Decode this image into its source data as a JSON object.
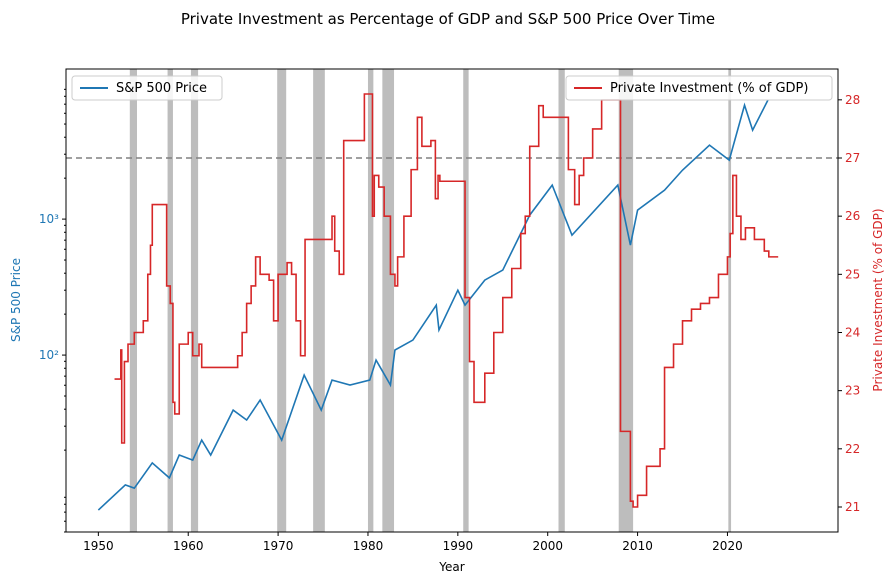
{
  "chart_data": {
    "type": "line",
    "title": "Private Investment as Percentage of GDP and S&P 500 Price Over Time",
    "xlabel": "Year",
    "ylabel": "S&P 500 Price",
    "y2label": "Private Investment (% of GDP)",
    "xlim": [
      1946.4,
      2032.3
    ],
    "xticks": [
      1950,
      1960,
      1970,
      1980,
      1990,
      2000,
      2010,
      2020
    ],
    "ylim": [
      5,
      12700
    ],
    "yscale": "log",
    "yticks": [
      {
        "value": 100,
        "label": "10²"
      },
      {
        "value": 1000,
        "label": "10³"
      }
    ],
    "y2lim": [
      20.57,
      28.53
    ],
    "y2ticks": [
      21,
      22,
      23,
      24,
      25,
      26,
      27,
      28
    ],
    "hline": {
      "value": 27,
      "axis": "y2",
      "color": "#808080",
      "style": "dashed"
    },
    "recessions": [
      [
        1953.5,
        1954.3
      ],
      [
        1957.7,
        1958.3
      ],
      [
        1960.3,
        1961.1
      ],
      [
        1969.9,
        1970.9
      ],
      [
        1973.9,
        1975.2
      ],
      [
        1980.0,
        1980.6
      ],
      [
        1981.6,
        1982.9
      ],
      [
        1990.6,
        1991.2
      ],
      [
        2001.2,
        2001.9
      ],
      [
        2007.9,
        2009.5
      ],
      [
        2020.1,
        2020.4
      ]
    ],
    "recession_color": "#999999",
    "series": [
      {
        "name": "S&P 500 Price",
        "color": "#1f77b4",
        "axis": "y",
        "legend": "upper left",
        "drawstyle": "default",
        "x": [
          1950,
          1953,
          1954,
          1956,
          1957.9,
          1959,
          1960.5,
          1961.5,
          1962.5,
          1965,
          1966.5,
          1968,
          1970.4,
          1972.9,
          1974.8,
          1976,
          1978,
          1980.2,
          1980.9,
          1982.5,
          1983,
          1985,
          1987.6,
          1987.9,
          1990,
          1990.8,
          1993,
          1995,
          1998,
          2000.5,
          2002.7,
          2007.8,
          2009.2,
          2010,
          2013,
          2015,
          2018,
          2020.2,
          2021.9,
          2022.8,
          2024.5
        ],
        "values": [
          7.25,
          11.1,
          10.5,
          16.1,
          12.5,
          18.4,
          16.9,
          23.7,
          18.4,
          39.4,
          33.3,
          46.7,
          23.7,
          71.3,
          39.4,
          65.5,
          60.2,
          65.5,
          91.9,
          60.2,
          109,
          129,
          233,
          153,
          300,
          233,
          356,
          422,
          1070,
          1778,
          762,
          1778,
          644,
          1165,
          1634,
          2291,
          3500,
          2716,
          6890,
          4510,
          7500
        ]
      },
      {
        "name": "Private Investment (% of GDP)",
        "color": "#d62728",
        "axis": "y2",
        "legend": "upper right",
        "drawstyle": "steps-post",
        "x": [
          1951.8,
          1952.5,
          1952.6,
          1952.9,
          1953.3,
          1954,
          1955,
          1955.5,
          1955.8,
          1956,
          1957.6,
          1958,
          1958.3,
          1958.5,
          1959,
          1960,
          1960.5,
          1961.2,
          1961.5,
          1965.5,
          1966,
          1966.5,
          1967,
          1967.5,
          1968,
          1969,
          1969.5,
          1970,
          1971,
          1971.5,
          1972,
          1972.5,
          1973,
          1976,
          1976.3,
          1976.8,
          1977.3,
          1979.6,
          1980.5,
          1980.7,
          1981.2,
          1981.8,
          1982.5,
          1983,
          1983.3,
          1984,
          1984.8,
          1985.5,
          1986,
          1987,
          1987.5,
          1987.8,
          1988,
          1990.8,
          1991.3,
          1991.8,
          1993,
          1994,
          1995,
          1996,
          1997,
          1997.5,
          1998,
          1999,
          1999.5,
          2002.3,
          2003,
          2003.5,
          2004,
          2005,
          2006,
          2008.1,
          2009.2,
          2009.5,
          2010,
          2011,
          2012.5,
          2013,
          2014,
          2015,
          2016,
          2017,
          2018,
          2019,
          2020,
          2020.3,
          2020.6,
          2021,
          2021.5,
          2022,
          2023,
          2024.1,
          2024.6,
          2025.2
        ],
        "values": [
          23.2,
          23.7,
          22.1,
          23.5,
          23.8,
          24.0,
          24.2,
          25.0,
          25.5,
          26.2,
          24.8,
          24.5,
          22.8,
          22.6,
          23.8,
          24.0,
          23.6,
          23.8,
          23.4,
          23.6,
          24.0,
          24.5,
          24.8,
          25.3,
          25.0,
          24.9,
          24.2,
          25.0,
          25.2,
          25.0,
          24.2,
          23.6,
          25.6,
          26.0,
          25.4,
          25.0,
          27.3,
          28.1,
          26.0,
          26.7,
          26.5,
          26.0,
          25.0,
          24.8,
          25.3,
          26.0,
          26.8,
          27.7,
          27.2,
          27.3,
          26.3,
          26.7,
          26.6,
          24.6,
          23.5,
          22.8,
          23.3,
          24.0,
          24.6,
          25.1,
          25.7,
          26.0,
          27.2,
          27.9,
          27.7,
          26.8,
          26.2,
          26.7,
          27.0,
          27.5,
          28.0,
          22.3,
          21.1,
          21.0,
          21.2,
          21.7,
          22.0,
          23.4,
          23.8,
          24.2,
          24.4,
          24.5,
          24.6,
          25.0,
          25.3,
          25.7,
          26.7,
          26.0,
          25.6,
          25.8,
          25.6,
          25.4,
          25.3,
          25.3
        ]
      }
    ]
  }
}
